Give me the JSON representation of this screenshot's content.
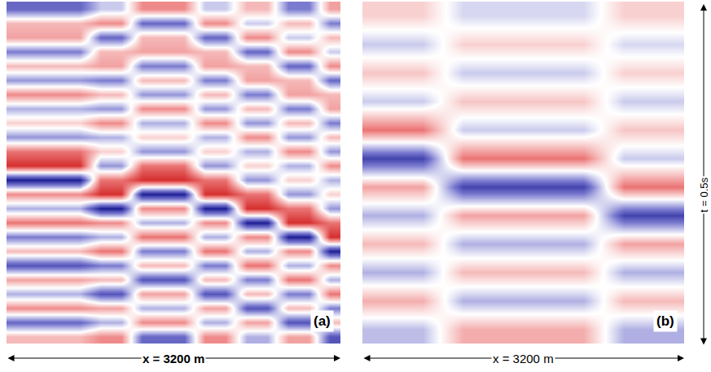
{
  "chart_data": [
    {
      "type": "heatmap",
      "label": "(a)",
      "x_label": "x = 3200 m",
      "tick_labels": false,
      "zlim": [
        -1,
        1
      ],
      "z": [
        [
          -0.6,
          -0.6,
          -0.6,
          -0.6,
          -0.2,
          -0.2,
          0.5,
          0.5,
          0.5,
          -0.2,
          -0.2,
          0.3,
          0.3,
          -0.5,
          -0.5,
          0.4
        ],
        [
          0.3,
          0.3,
          0.3,
          0.3,
          0.5,
          0.5,
          -0.6,
          -0.6,
          -0.6,
          0.5,
          0.5,
          -0.2,
          -0.2,
          0.3,
          0.3,
          -0.5
        ],
        [
          0.4,
          0.4,
          0.4,
          0.4,
          -0.6,
          -0.6,
          0.3,
          0.3,
          0.3,
          -0.6,
          -0.6,
          0.5,
          0.5,
          -0.2,
          -0.2,
          0.3
        ],
        [
          -0.5,
          -0.5,
          -0.5,
          -0.5,
          0.3,
          0.3,
          0.4,
          0.4,
          0.4,
          0.3,
          0.3,
          -0.6,
          -0.6,
          0.5,
          0.5,
          -0.2
        ],
        [
          0.3,
          0.3,
          0.3,
          0.3,
          0.4,
          0.4,
          -0.5,
          -0.5,
          -0.5,
          0.4,
          0.4,
          0.3,
          0.3,
          -0.6,
          -0.6,
          0.5
        ],
        [
          -0.4,
          -0.4,
          -0.4,
          -0.4,
          -0.5,
          -0.5,
          0.3,
          0.3,
          0.3,
          -0.5,
          -0.5,
          0.4,
          0.4,
          0.3,
          0.3,
          -0.6
        ],
        [
          0.5,
          0.5,
          0.5,
          0.5,
          0.3,
          0.3,
          -0.4,
          -0.4,
          -0.4,
          0.3,
          0.3,
          -0.5,
          -0.5,
          0.4,
          0.4,
          0.3
        ],
        [
          -0.3,
          -0.3,
          -0.3,
          -0.3,
          -0.4,
          -0.4,
          0.5,
          0.5,
          0.5,
          -0.4,
          -0.4,
          0.3,
          0.3,
          -0.5,
          -0.5,
          0.4
        ],
        [
          0.2,
          0.2,
          0.2,
          0.2,
          0.5,
          0.5,
          -0.3,
          -0.3,
          -0.3,
          0.5,
          0.5,
          -0.4,
          -0.4,
          0.3,
          0.3,
          -0.5
        ],
        [
          -0.4,
          -0.4,
          -0.4,
          -0.4,
          -0.3,
          -0.3,
          0.2,
          0.2,
          0.2,
          -0.3,
          -0.3,
          0.5,
          0.5,
          -0.4,
          -0.4,
          0.3
        ],
        [
          0.6,
          0.6,
          0.6,
          0.6,
          0.2,
          0.2,
          -0.4,
          -0.4,
          -0.4,
          0.2,
          0.2,
          -0.3,
          -0.3,
          0.5,
          0.5,
          -0.4
        ],
        [
          0.9,
          0.9,
          0.9,
          0.9,
          -0.4,
          -0.4,
          0.6,
          0.6,
          0.6,
          -0.4,
          -0.4,
          0.2,
          0.2,
          -0.3,
          -0.3,
          0.5
        ],
        [
          -1.0,
          -1.0,
          -1.0,
          -1.0,
          0.6,
          0.6,
          0.9,
          0.9,
          0.9,
          0.6,
          0.6,
          -0.4,
          -0.4,
          0.2,
          0.2,
          -0.3
        ],
        [
          0.5,
          0.5,
          0.5,
          0.5,
          0.9,
          0.9,
          -1.0,
          -1.0,
          -1.0,
          0.9,
          0.9,
          0.6,
          0.6,
          -0.4,
          -0.4,
          0.2
        ],
        [
          -0.3,
          -0.3,
          -0.3,
          -0.3,
          -1.0,
          -1.0,
          0.5,
          0.5,
          0.5,
          -1.0,
          -1.0,
          0.9,
          0.9,
          0.6,
          0.6,
          -0.4
        ],
        [
          0.6,
          0.6,
          0.6,
          0.6,
          0.5,
          0.5,
          -0.3,
          -0.3,
          -0.3,
          0.5,
          0.5,
          -1.0,
          -1.0,
          0.9,
          0.9,
          0.6
        ],
        [
          -0.5,
          -0.5,
          -0.5,
          -0.5,
          -0.3,
          -0.3,
          0.6,
          0.6,
          0.6,
          -0.3,
          -0.3,
          0.5,
          0.5,
          -1.0,
          -1.0,
          0.9
        ],
        [
          0.3,
          0.3,
          0.3,
          0.3,
          0.6,
          0.6,
          -0.5,
          -0.5,
          -0.5,
          0.6,
          0.6,
          -0.3,
          -0.3,
          0.5,
          0.5,
          -1.0
        ],
        [
          -0.7,
          -0.7,
          -0.7,
          -0.7,
          -0.5,
          -0.5,
          0.3,
          0.3,
          0.3,
          -0.5,
          -0.5,
          0.6,
          0.6,
          -0.3,
          -0.3,
          0.5
        ],
        [
          0.4,
          0.4,
          0.4,
          0.4,
          0.3,
          0.3,
          -0.7,
          -0.7,
          -0.7,
          0.3,
          0.3,
          -0.5,
          -0.5,
          0.6,
          0.6,
          -0.3
        ],
        [
          -0.3,
          -0.3,
          -0.3,
          -0.3,
          -0.7,
          -0.7,
          0.4,
          0.4,
          0.4,
          -0.7,
          -0.7,
          0.3,
          0.3,
          -0.5,
          -0.5,
          0.6
        ],
        [
          0.5,
          0.5,
          0.5,
          0.5,
          0.4,
          0.4,
          -0.3,
          -0.3,
          -0.3,
          0.4,
          0.4,
          -0.7,
          -0.7,
          0.3,
          0.3,
          -0.5
        ],
        [
          -0.6,
          -0.6,
          -0.6,
          -0.6,
          -0.3,
          -0.3,
          0.5,
          0.5,
          0.5,
          -0.3,
          -0.3,
          0.4,
          0.4,
          -0.7,
          -0.7,
          0.3
        ],
        [
          0.3,
          0.3,
          0.3,
          0.3,
          0.5,
          0.5,
          -0.6,
          -0.6,
          -0.6,
          0.5,
          0.5,
          -0.3,
          -0.3,
          0.4,
          0.4,
          -0.7
        ]
      ]
    },
    {
      "type": "heatmap",
      "label": "(b)",
      "x_label": "x = 3200 m",
      "y_label": "t = 0.5s",
      "tick_labels": false,
      "zlim": [
        -1,
        1
      ],
      "z": [
        [
          0.2,
          0.2,
          -0.15,
          -0.15,
          -0.15,
          -0.15,
          0.2,
          0.2
        ],
        [
          -0.2,
          -0.2,
          0.2,
          0.2,
          0.2,
          0.2,
          -0.15,
          -0.15
        ],
        [
          0.25,
          0.25,
          -0.2,
          -0.2,
          -0.2,
          -0.2,
          0.2,
          0.2
        ],
        [
          -0.2,
          -0.2,
          0.25,
          0.25,
          0.25,
          0.25,
          -0.2,
          -0.2
        ],
        [
          0.6,
          0.6,
          -0.2,
          -0.2,
          -0.2,
          -0.2,
          0.25,
          0.25
        ],
        [
          -0.8,
          -0.8,
          0.6,
          0.6,
          0.6,
          0.6,
          -0.2,
          -0.2
        ],
        [
          0.4,
          0.4,
          -0.8,
          -0.8,
          -0.8,
          -0.8,
          0.6,
          0.6
        ],
        [
          -0.3,
          -0.3,
          0.4,
          0.4,
          0.4,
          0.4,
          -0.8,
          -0.8
        ],
        [
          0.3,
          0.3,
          -0.3,
          -0.3,
          -0.3,
          -0.3,
          0.4,
          0.4
        ],
        [
          -0.3,
          -0.3,
          0.3,
          0.3,
          0.3,
          0.3,
          -0.3,
          -0.3
        ],
        [
          0.35,
          0.35,
          -0.3,
          -0.3,
          -0.3,
          -0.3,
          0.3,
          0.3
        ],
        [
          -0.25,
          -0.25,
          0.35,
          0.35,
          0.35,
          0.35,
          -0.3,
          -0.3
        ]
      ]
    }
  ]
}
